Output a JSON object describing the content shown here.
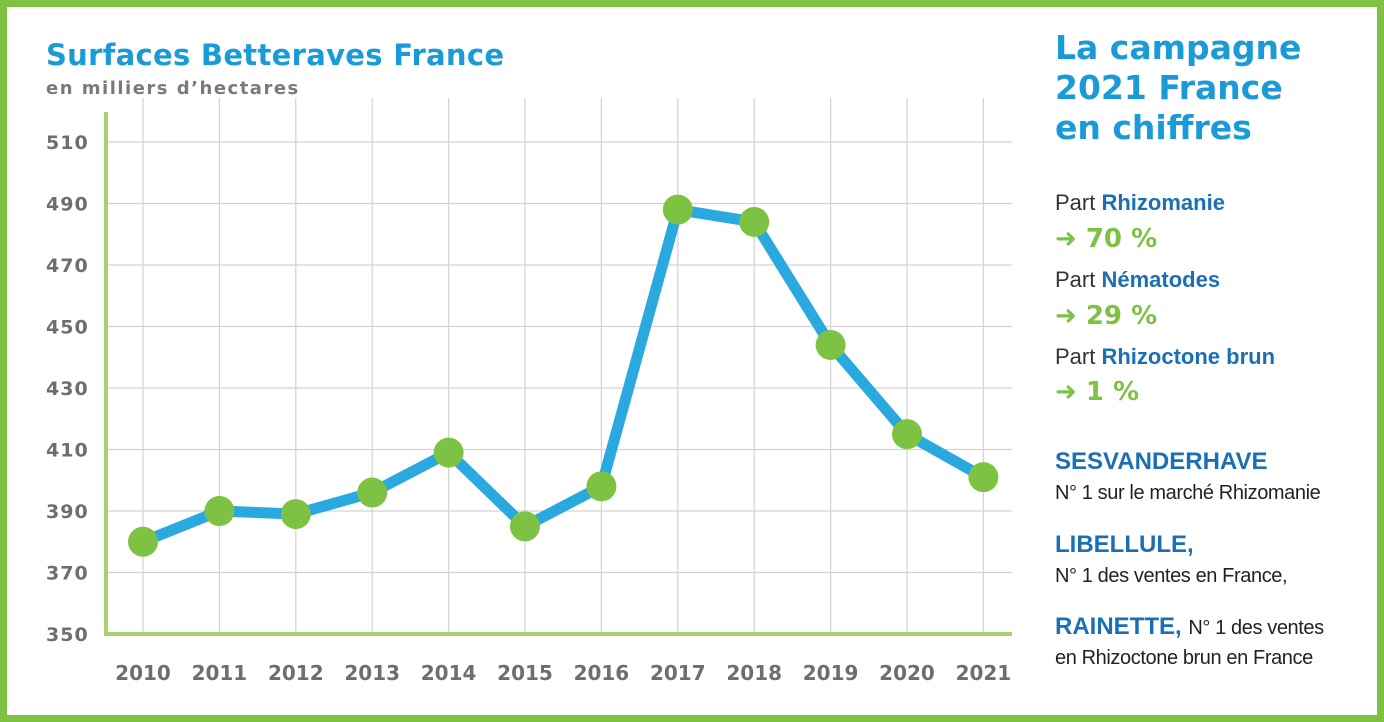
{
  "chart_data": {
    "type": "line",
    "title": "Surfaces Betteraves France",
    "subtitle": "en milliers d’hectares",
    "categories": [
      "2010",
      "2011",
      "2012",
      "2013",
      "2014",
      "2015",
      "2016",
      "2017",
      "2018",
      "2019",
      "2020",
      "2021"
    ],
    "series": [
      {
        "values": [
          380,
          390,
          389,
          396,
          409,
          385,
          398,
          488,
          484,
          444,
          415,
          401
        ]
      }
    ],
    "yticks": [
      350,
      370,
      390,
      410,
      430,
      450,
      470,
      490,
      510
    ],
    "ylim": [
      350,
      510
    ],
    "grid": true,
    "colors": {
      "line": "#2aa8e0",
      "marker": "#7dc242",
      "axis": "#a6d36c",
      "grid": "#d2d2d2",
      "tick_text": "#6e6e6e"
    }
  },
  "side_panel": {
    "title_lines": [
      "La campagne",
      "2021 France",
      "en chiffres"
    ],
    "stats": [
      {
        "prefix": "Part",
        "name": "Rhizomanie",
        "value": "➜ 70 %"
      },
      {
        "prefix": "Part",
        "name": "Nématodes",
        "value": "➜ 29 %"
      },
      {
        "prefix": "Part",
        "name": "Rhizoctone brun",
        "value": "➜ 1 %"
      }
    ],
    "brands": [
      {
        "name": "SESVANDERHAVE",
        "desc": "N° 1 sur le marché Rhizomanie"
      },
      {
        "name": "LIBELLULE,",
        "desc": "N° 1 des ventes en France,"
      },
      {
        "name": "RAINETTE,",
        "inline": "N° 1 des ventes",
        "desc": "en Rhizoctone brun en France"
      }
    ]
  }
}
